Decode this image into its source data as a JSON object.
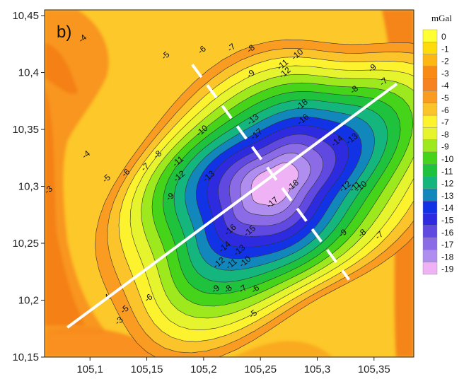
{
  "chart_data": {
    "type": "heatmap",
    "subtype": "filled-contour",
    "panel_label": "b)",
    "colorbar_unit": "mGal",
    "xlim": [
      105.06,
      105.385
    ],
    "ylim": [
      10.15,
      10.455
    ],
    "x_ticks": [
      "105,1",
      "105,15",
      "105,2",
      "105,25",
      "105,3",
      "105,35"
    ],
    "x_tick_values": [
      105.1,
      105.15,
      105.2,
      105.25,
      105.3,
      105.35
    ],
    "y_ticks": [
      "10,45",
      "10,4",
      "10,35",
      "10,3",
      "10,25",
      "10,2",
      "10,15"
    ],
    "y_tick_values": [
      10.45,
      10.4,
      10.35,
      10.3,
      10.25,
      10.2,
      10.15
    ],
    "levels": [
      0,
      -1,
      -2,
      -3,
      -4,
      -5,
      -6,
      -7,
      -8,
      -9,
      -10,
      -11,
      -12,
      -13,
      -14,
      -15,
      -16,
      -17,
      -18,
      -19
    ],
    "level_colors": [
      "#ffff33",
      "#fedc0b",
      "#fdb714",
      "#f98a14",
      "#f68220",
      "#fb9c22",
      "#fbc42a",
      "#fdf22e",
      "#e5f42c",
      "#9ee81e",
      "#45d41a",
      "#1fc23c",
      "#14b67e",
      "#1287bb",
      "#1232e6",
      "#2d2ae0",
      "#5f49e1",
      "#8c6be6",
      "#b08ef0",
      "#efb2f4"
    ],
    "anomaly_center": [
      105.262,
      10.302
    ],
    "min_value": -19,
    "profile_lines": [
      {
        "style": "solid",
        "from": [
          105.08,
          10.176
        ],
        "to": [
          105.37,
          10.39
        ]
      },
      {
        "style": "dashed",
        "from": [
          105.19,
          10.407
        ],
        "to": [
          105.328,
          10.218
        ]
      }
    ],
    "contour_labels": [
      {
        "text": "-4",
        "x": 105.095,
        "y": 10.428
      },
      {
        "text": "-5",
        "x": 105.168,
        "y": 10.413
      },
      {
        "text": "-6",
        "x": 105.2,
        "y": 10.418
      },
      {
        "text": "-7",
        "x": 105.226,
        "y": 10.42
      },
      {
        "text": "-8",
        "x": 105.243,
        "y": 10.419
      },
      {
        "text": "-9",
        "x": 105.243,
        "y": 10.397
      },
      {
        "text": "-10",
        "x": 105.284,
        "y": 10.414
      },
      {
        "text": "-11",
        "x": 105.271,
        "y": 10.405
      },
      {
        "text": "-12",
        "x": 105.273,
        "y": 10.398
      },
      {
        "text": "-13",
        "x": 105.245,
        "y": 10.357
      },
      {
        "text": "-18",
        "x": 105.288,
        "y": 10.37
      },
      {
        "text": "-16",
        "x": 105.289,
        "y": 10.357
      },
      {
        "text": "-17",
        "x": 105.248,
        "y": 10.344
      },
      {
        "text": "-10",
        "x": 105.2,
        "y": 10.347
      },
      {
        "text": "-8",
        "x": 105.161,
        "y": 10.326
      },
      {
        "text": "-7",
        "x": 105.15,
        "y": 10.315
      },
      {
        "text": "-6",
        "x": 105.133,
        "y": 10.31
      },
      {
        "text": "-4",
        "x": 105.098,
        "y": 10.326
      },
      {
        "text": "-5",
        "x": 105.116,
        "y": 10.305
      },
      {
        "text": "-3",
        "x": 105.065,
        "y": 10.295
      },
      {
        "text": "-11",
        "x": 105.179,
        "y": 10.32
      },
      {
        "text": "-12",
        "x": 105.18,
        "y": 10.307
      },
      {
        "text": "-9",
        "x": 105.172,
        "y": 10.289
      },
      {
        "text": "-13",
        "x": 105.206,
        "y": 10.307
      },
      {
        "text": "-18",
        "x": 105.28,
        "y": 10.299
      },
      {
        "text": "-17",
        "x": 105.262,
        "y": 10.284
      },
      {
        "text": "-16",
        "x": 105.225,
        "y": 10.26
      },
      {
        "text": "-15",
        "x": 105.242,
        "y": 10.259
      },
      {
        "text": "-14",
        "x": 105.22,
        "y": 10.245
      },
      {
        "text": "-13",
        "x": 105.233,
        "y": 10.242
      },
      {
        "text": "-12",
        "x": 105.215,
        "y": 10.231
      },
      {
        "text": "-11",
        "x": 105.226,
        "y": 10.23
      },
      {
        "text": "-10",
        "x": 105.238,
        "y": 10.232
      },
      {
        "text": "-9",
        "x": 105.212,
        "y": 10.208
      },
      {
        "text": "-8",
        "x": 105.223,
        "y": 10.208
      },
      {
        "text": "-7",
        "x": 105.236,
        "y": 10.208
      },
      {
        "text": "-6",
        "x": 105.247,
        "y": 10.208
      },
      {
        "text": "-5",
        "x": 105.245,
        "y": 10.186
      },
      {
        "text": "-6",
        "x": 105.153,
        "y": 10.2
      },
      {
        "text": "-5",
        "x": 105.132,
        "y": 10.19
      },
      {
        "text": "-4",
        "x": 105.116,
        "y": 10.2
      },
      {
        "text": "-3",
        "x": 105.127,
        "y": 10.18
      },
      {
        "text": "-9",
        "x": 105.35,
        "y": 10.402
      },
      {
        "text": "-8",
        "x": 105.334,
        "y": 10.383
      },
      {
        "text": "-7",
        "x": 105.36,
        "y": 10.39
      },
      {
        "text": "-14",
        "x": 105.319,
        "y": 10.338
      },
      {
        "text": "-13",
        "x": 105.332,
        "y": 10.34
      },
      {
        "text": "-12",
        "x": 105.326,
        "y": 10.298
      },
      {
        "text": "-11",
        "x": 105.335,
        "y": 10.298
      },
      {
        "text": "-10",
        "x": 105.34,
        "y": 10.298
      },
      {
        "text": "-9",
        "x": 105.324,
        "y": 10.257
      },
      {
        "text": "-8",
        "x": 105.341,
        "y": 10.257
      },
      {
        "text": "-7",
        "x": 105.356,
        "y": 10.255
      }
    ]
  }
}
